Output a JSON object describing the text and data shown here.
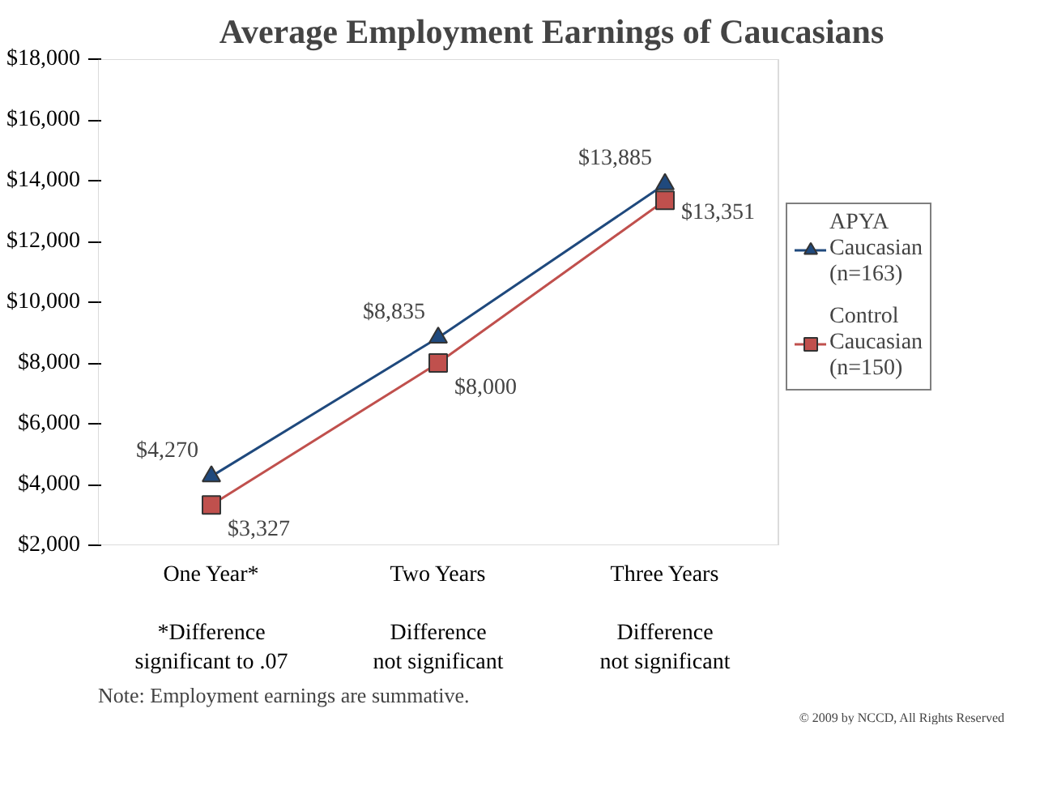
{
  "chart_data": {
    "type": "line",
    "title": "Average Employment Earnings of Caucasians",
    "categories": [
      "One Year*",
      "Two Years",
      "Three Years"
    ],
    "series": [
      {
        "name": "APYA Caucasian (n=163)",
        "color": "#1f497d",
        "marker": "triangle",
        "values": [
          4270,
          8835,
          13885
        ],
        "value_labels": [
          "$4,270",
          "$8,835",
          "$13,885"
        ]
      },
      {
        "name": "Control Caucasian (n=150)",
        "color": "#c0504d",
        "marker": "square",
        "values": [
          3327,
          8000,
          13351
        ],
        "value_labels": [
          "$3,327",
          "$8,000",
          "$13,351"
        ]
      }
    ],
    "ylim": [
      2000,
      18000
    ],
    "yticks": [
      {
        "value": 2000,
        "label": "$2,000"
      },
      {
        "value": 4000,
        "label": "$4,000"
      },
      {
        "value": 6000,
        "label": "$6,000"
      },
      {
        "value": 8000,
        "label": "$8,000"
      },
      {
        "value": 10000,
        "label": "$10,000"
      },
      {
        "value": 12000,
        "label": "$12,000"
      },
      {
        "value": 14000,
        "label": "$14,000"
      },
      {
        "value": 16000,
        "label": "$16,000"
      },
      {
        "value": 18000,
        "label": "$18,000"
      }
    ],
    "grid": false,
    "legend": "right",
    "annotations": [
      "*Difference\nsignificant to .07",
      "Difference\nnot significant",
      "Difference\nnot significant",
      "Note:  Employment earnings are summative.",
      "© 2009 by NCCD, All Rights Reserved"
    ]
  }
}
